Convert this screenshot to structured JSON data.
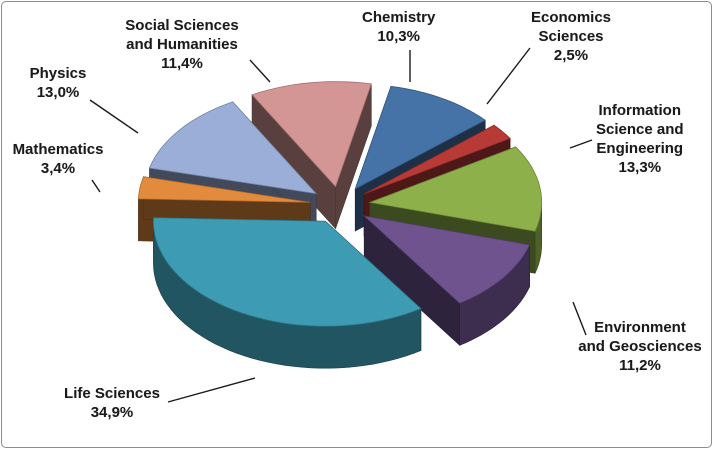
{
  "chart_data": {
    "type": "pie",
    "style": "3d-exploded",
    "title": "",
    "legend": "none",
    "slices": [
      {
        "label": "Chemistry",
        "value": 10.3,
        "value_text": "10,3%",
        "color": "#4572a7"
      },
      {
        "label": "Economics Sciences",
        "value": 2.5,
        "value_text": "2,5%",
        "color": "#b83a37"
      },
      {
        "label": "Information Science and Engineering",
        "value": 13.3,
        "value_text": "13,3%",
        "color": "#8db04a"
      },
      {
        "label": "Environment and Geosciences",
        "value": 11.2,
        "value_text": "11,2%",
        "color": "#6e538f"
      },
      {
        "label": "Life Sciences",
        "value": 34.9,
        "value_text": "34,9%",
        "color": "#3d9bb3"
      },
      {
        "label": "Mathematics",
        "value": 3.4,
        "value_text": "3,4%",
        "color": "#e38b3c"
      },
      {
        "label": "Physics",
        "value": 13.0,
        "value_text": "13,0%",
        "color": "#9aaed8"
      },
      {
        "label": "Social Sciences and Humanities",
        "value": 11.4,
        "value_text": "11,4%",
        "color": "#d49694"
      }
    ]
  }
}
